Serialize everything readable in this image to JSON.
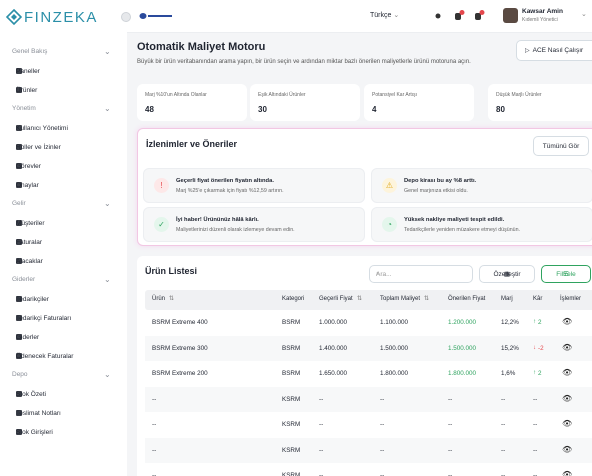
{
  "sidebar": {
    "logo": "FINZEKA",
    "sections": [
      {
        "title": "Genel Bakış",
        "items": [
          "Paneller",
          "Ürünler"
        ]
      },
      {
        "title": "Yönetim",
        "items": [
          "Kullanıcı Yönetimi",
          "Roller ve İzinler",
          "Görevler",
          "Onaylar"
        ]
      },
      {
        "title": "Gelir",
        "items": [
          "Müşteriler",
          "Faturalar",
          "Alacaklar"
        ]
      },
      {
        "title": "Giderler",
        "items": [
          "Tedarikçiler",
          "Tedarikçi Faturaları",
          "Giderler",
          "Ödenecek Faturalar"
        ]
      },
      {
        "title": "Depo",
        "items": [
          "Stok Özeti",
          "Teslimat Notları",
          "Stok Girişleri"
        ]
      }
    ]
  },
  "topbar": {
    "language": "Türkçe",
    "user_name": "Kawsar Amin",
    "user_role": "Kıdemli Yönetici"
  },
  "page": {
    "title": "Otomatik Maliyet Motoru",
    "description": "Büyük bir ürün veritabanından arama yapın, bir ürün seçin ve ardından miktar bazlı önerilen maliyetlerle ürünü motoruna açın.",
    "help_button": "ACE Nasıl Çalışır"
  },
  "stats": [
    {
      "label": "Marj %10'un Altında Olanlar",
      "value": 48
    },
    {
      "label": "Eşik Altındaki Ürünler",
      "value": 30
    },
    {
      "label": "Potansiyel Kar Artışı",
      "value": 4
    },
    {
      "label": "Düşük Marjlı Ürünler",
      "value": 80
    }
  ],
  "insights": {
    "title": "İzlenimler ve Öneriler",
    "button": "Tümünü Gör",
    "items": [
      {
        "title": "Geçerli fiyat önerilen fiyatın altında.",
        "text": "Marj %25'e çıkarmak için fiyatı %12,59 artırın."
      },
      {
        "title": "Depo kirası bu ay %8 arttı.",
        "text": "Genel marjınıza etkisi oldu."
      },
      {
        "title": "İyi haber! Ürününüz hâlâ kârlı.",
        "text": "Maliyetlerinizi düzenli olarak izlemeye devam edin."
      },
      {
        "title": "Yüksek nakliye maliyeti tespit edildi.",
        "text": "Tedarikçilerle yeniden müzakere etmeyi düşünün."
      }
    ]
  },
  "products": {
    "title": "Ürün Listesi",
    "search_placeholder": "Ara...",
    "customize": "Özelleştir",
    "filter": "Filtrele",
    "columns": [
      "Ürün",
      "Kategori",
      "Geçerli Fiyat",
      "Toplam Maliyet",
      "Önerilen Fiyat",
      "Marj",
      "Kâr",
      "İşlemler"
    ],
    "rows": [
      [
        "BSRM Extreme 400",
        "BSRM",
        "1.000.000",
        "1.100.000",
        "1.200.000",
        "12,2%",
        "2"
      ],
      [
        "BSRM Extreme 300",
        "BSRM",
        "1.400.000",
        "1.500.000",
        "1.500.000",
        "15,2%",
        "-2"
      ],
      [
        "BSRM Extreme 200",
        "BSRM",
        "1.650.000",
        "1.800.000",
        "1.800.000",
        "1,6%",
        "2"
      ],
      [
        "--",
        "KSRM",
        "--",
        "--",
        "--",
        "--",
        "--"
      ],
      [
        "--",
        "KSRM",
        "--",
        "--",
        "--",
        "--",
        "--"
      ],
      [
        "--",
        "KSRM",
        "--",
        "--",
        "--",
        "--",
        "--"
      ],
      [
        "--",
        "KSRM",
        "--",
        "--",
        "--",
        "--",
        "--"
      ]
    ]
  }
}
